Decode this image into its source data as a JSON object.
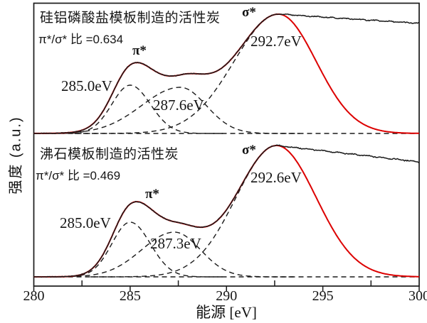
{
  "chart_data": {
    "type": "line",
    "title": "",
    "xlabel": "能源 [eV]",
    "ylabel": "强度 (a.u.)",
    "x_range": [
      280,
      300
    ],
    "x_major_ticks": [
      280,
      285,
      290,
      295,
      300
    ],
    "x_minor_ticks": [
      282.5,
      287.5,
      292.5,
      297.5
    ],
    "grid": false,
    "legend": "none",
    "series_styles": [
      {
        "name": "experimental",
        "style": "solid",
        "color": "#1a1a1a"
      },
      {
        "name": "fit",
        "style": "solid",
        "color": "#dd0000"
      },
      {
        "name": "fit-components",
        "style": "dashed",
        "color": "#1a1a1a"
      }
    ],
    "panels": [
      {
        "sample_label": "硅铝磷酸盐模板制造的活性炭",
        "ratio_label": "π*/σ* 比 =0.634",
        "pi_sigma_ratio": 0.634,
        "pi_label": "π*",
        "sigma_label": "σ*",
        "peak_labels": {
          "p1": "285.0eV",
          "p2": "287.6eV",
          "p3": "292.7eV"
        },
        "components": [
          {
            "center": 285.0,
            "amplitude": 68,
            "sigma_left": 0.95,
            "sigma_right": 1.05
          },
          {
            "center": 287.6,
            "amplitude": 65,
            "sigma_left": 2.0,
            "sigma_right": 1.35
          },
          {
            "center": 292.7,
            "amplitude": 168,
            "sigma_left": 2.3,
            "sigma_right": 1.95
          }
        ],
        "experimental_plateau_end_height": 155
      },
      {
        "sample_label": "沸石模板制造的活性炭",
        "ratio_label": "π*/σ* 比 =0.469",
        "pi_sigma_ratio": 0.469,
        "pi_label": "π*",
        "sigma_label": "σ*",
        "peak_labels": {
          "p1": "285.0eV",
          "p2": "287.3eV",
          "p3": "292.6eV"
        },
        "components": [
          {
            "center": 285.0,
            "amplitude": 77,
            "sigma_left": 0.95,
            "sigma_right": 1.05
          },
          {
            "center": 287.3,
            "amplitude": 63,
            "sigma_left": 1.7,
            "sigma_right": 1.35
          },
          {
            "center": 292.6,
            "amplitude": 185,
            "sigma_left": 2.1,
            "sigma_right": 2.05
          }
        ],
        "experimental_plateau_end_height": 162
      }
    ]
  }
}
